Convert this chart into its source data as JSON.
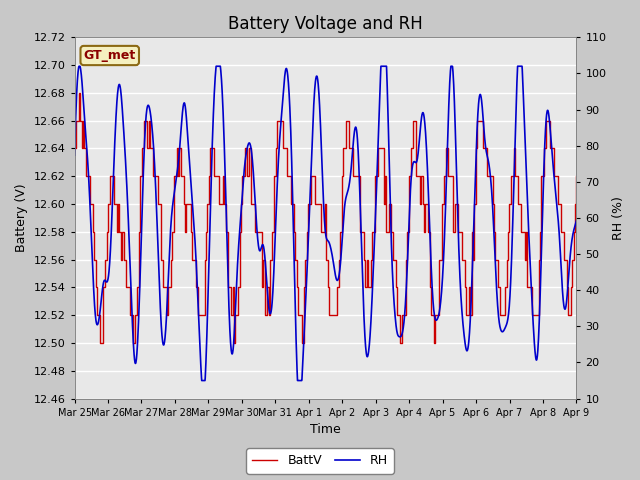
{
  "title": "Battery Voltage and RH",
  "xlabel": "Time",
  "ylabel_left": "Battery (V)",
  "ylabel_right": "RH (%)",
  "annotation": "GT_met",
  "ylim_left": [
    12.46,
    12.72
  ],
  "ylim_right": [
    10,
    110
  ],
  "yticks_left": [
    12.46,
    12.48,
    12.5,
    12.52,
    12.54,
    12.56,
    12.58,
    12.6,
    12.62,
    12.64,
    12.66,
    12.68,
    12.7,
    12.72
  ],
  "yticks_right": [
    10,
    20,
    30,
    40,
    50,
    60,
    70,
    80,
    90,
    100,
    110
  ],
  "xtick_labels": [
    "Mar 25",
    "Mar 26",
    "Mar 27",
    "Mar 28",
    "Mar 29",
    "Mar 30",
    "Mar 31",
    "Apr 1",
    "Apr 2",
    "Apr 3",
    "Apr 4",
    "Apr 5",
    "Apr 6",
    "Apr 7",
    "Apr 8",
    "Apr 9"
  ],
  "color_battv": "#cc0000",
  "color_rh": "#0000cc",
  "fig_bg": "#c8c8c8",
  "plot_bg": "#e8e8e8",
  "legend_battv": "BattV",
  "legend_rh": "RH",
  "title_fontsize": 12,
  "label_fontsize": 9,
  "tick_fontsize": 8,
  "annot_fontsize": 9
}
